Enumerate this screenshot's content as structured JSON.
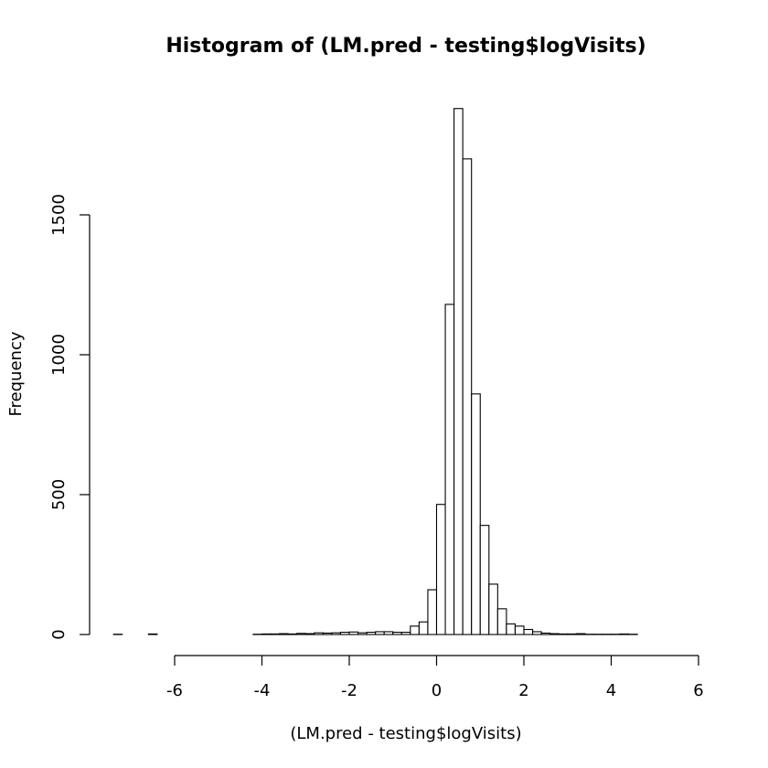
{
  "chart_data": {
    "type": "bar",
    "title": "Histogram of (LM.pred - testing$logVisits)",
    "xlabel": "(LM.pred - testing$logVisits)",
    "ylabel": "Frequency",
    "xlim": [
      -6,
      6
    ],
    "ylim": [
      0,
      1500
    ],
    "x_ticks": [
      -6,
      -4,
      -2,
      0,
      2,
      4,
      6
    ],
    "y_ticks": [
      0,
      500,
      1000,
      1500
    ],
    "bin_start": -7.4,
    "bin_width": 0.2,
    "counts": [
      1,
      0,
      0,
      0,
      2,
      0,
      0,
      0,
      0,
      0,
      0,
      0,
      0,
      0,
      0,
      0,
      1,
      2,
      2,
      3,
      2,
      4,
      3,
      6,
      5,
      6,
      8,
      9,
      6,
      8,
      10,
      10,
      8,
      8,
      30,
      45,
      160,
      465,
      1180,
      1880,
      1700,
      860,
      390,
      180,
      92,
      38,
      30,
      18,
      10,
      5,
      3,
      2,
      2,
      3,
      1,
      1,
      1,
      1,
      2,
      1,
      0,
      0,
      0,
      0,
      0,
      0,
      0
    ]
  }
}
